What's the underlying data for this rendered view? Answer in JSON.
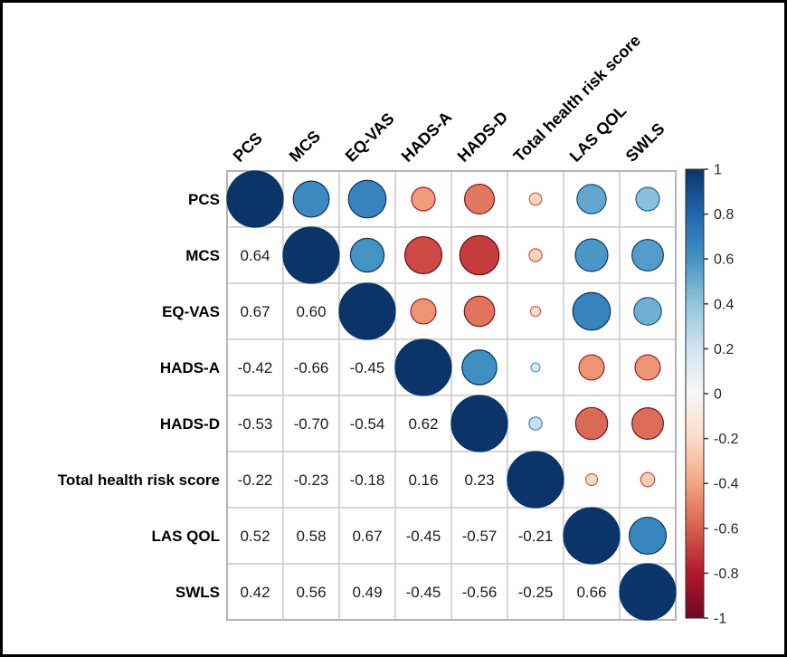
{
  "figure": {
    "background": "#ffffff",
    "frame_border_color": "#000000"
  },
  "chart_data": {
    "type": "heatmap",
    "subtype": "correlation-bubble-matrix",
    "title": "",
    "variables": [
      "PCS",
      "MCS",
      "EQ-VAS",
      "HADS-A",
      "HADS-D",
      "Total health risk score",
      "LAS QOL",
      "SWLS"
    ],
    "matrix": [
      [
        1.0,
        0.64,
        0.67,
        -0.42,
        -0.53,
        -0.22,
        0.52,
        0.42
      ],
      [
        0.64,
        1.0,
        0.6,
        -0.66,
        -0.7,
        -0.23,
        0.58,
        0.56
      ],
      [
        0.67,
        0.6,
        1.0,
        -0.45,
        -0.54,
        -0.18,
        0.67,
        0.49
      ],
      [
        -0.42,
        -0.66,
        -0.45,
        1.0,
        0.62,
        0.16,
        -0.45,
        -0.45
      ],
      [
        -0.53,
        -0.7,
        -0.54,
        0.62,
        1.0,
        0.23,
        -0.57,
        -0.56
      ],
      [
        -0.22,
        -0.23,
        -0.18,
        0.16,
        0.23,
        1.0,
        -0.21,
        -0.25
      ],
      [
        0.52,
        0.58,
        0.67,
        -0.45,
        -0.57,
        -0.21,
        1.0,
        0.66
      ],
      [
        0.42,
        0.56,
        0.49,
        -0.45,
        -0.56,
        -0.25,
        0.66,
        1.0
      ]
    ],
    "lower_triangle": "numbers",
    "upper_triangle": "circles",
    "diagonal": "circles",
    "circle_size_rule": "diameter proportional to |r|",
    "value_range": [
      -1,
      1
    ],
    "grid": true,
    "legend": {
      "position": "right",
      "min": -1,
      "max": 1,
      "tick_values": [
        1,
        0.8,
        0.6,
        0.4,
        0.2,
        0,
        -0.2,
        -0.4,
        -0.6,
        -0.8,
        -1
      ],
      "tick_labels": [
        "1",
        "0.8",
        "0.6",
        "0.4",
        "0.2",
        "0",
        "-0.2",
        "-0.4",
        "-0.6",
        "-0.8",
        "-1"
      ]
    },
    "colormap": {
      "name": "RdBu",
      "anchors": [
        {
          "t": -1.0,
          "color": "#6b0a21"
        },
        {
          "t": -0.8,
          "color": "#b2182b"
        },
        {
          "t": -0.6,
          "color": "#d6604d"
        },
        {
          "t": -0.4,
          "color": "#f4a582"
        },
        {
          "t": -0.2,
          "color": "#fddbc7"
        },
        {
          "t": 0.0,
          "color": "#f9f7f6"
        },
        {
          "t": 0.2,
          "color": "#d1e5f0"
        },
        {
          "t": 0.4,
          "color": "#92c5de"
        },
        {
          "t": 0.6,
          "color": "#4393c3"
        },
        {
          "t": 0.8,
          "color": "#2166ac"
        },
        {
          "t": 1.0,
          "color": "#0b3468"
        }
      ]
    },
    "colors": {
      "cell_fill": "#ffffff",
      "grid_line": "#cbcbcb",
      "grid_border": "#b5b5b5",
      "value_text": "#1c1c1c",
      "label_text": "#000000",
      "legend_text": "#262626",
      "legend_tick": "#333333",
      "legend_border": "#2b2b2b"
    }
  }
}
